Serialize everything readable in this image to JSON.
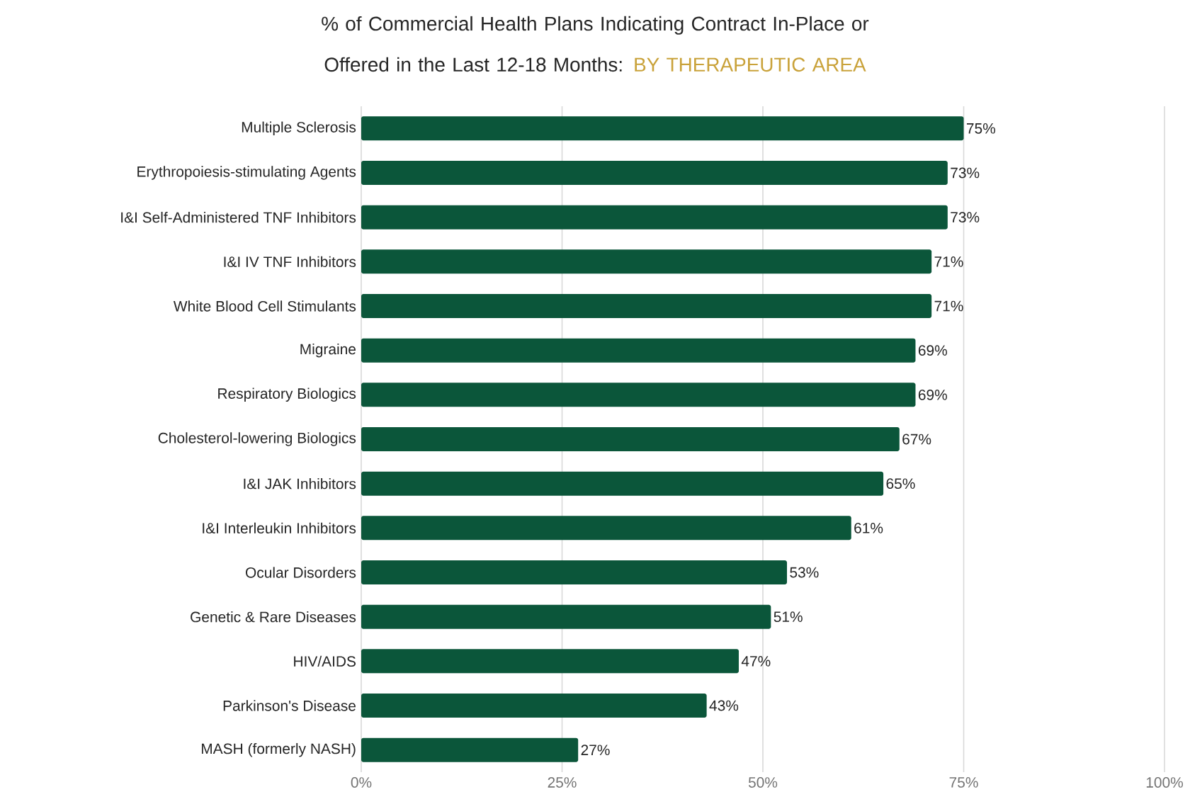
{
  "chart_data": {
    "type": "bar",
    "orientation": "horizontal",
    "title": "% of Commercial Health Plans Indicating Contract In-Place or Offered in the Last 12-18 Months:",
    "subtitle": "BY THERAPEUTIC AREA",
    "categories": [
      "Multiple Sclerosis",
      "Erythropoiesis-stimulating Agents",
      "I&I Self-Administered TNF Inhibitors",
      "I&I IV TNF Inhibitors",
      "White Blood Cell Stimulants",
      "Migraine",
      "Respiratory Biologics",
      "Cholesterol-lowering Biologics",
      "I&I JAK Inhibitors",
      "I&I Interleukin Inhibitors",
      "Ocular Disorders",
      "Genetic & Rare Diseases",
      "HIV/AIDS",
      "Parkinson's Disease",
      "MASH (formerly NASH)"
    ],
    "values": [
      75,
      73,
      73,
      71,
      71,
      69,
      69,
      67,
      65,
      61,
      53,
      51,
      47,
      43,
      27
    ],
    "value_labels": [
      "75%",
      "73%",
      "73%",
      "71%",
      "71%",
      "69%",
      "69%",
      "67%",
      "65%",
      "61%",
      "53%",
      "51%",
      "47%",
      "43%",
      "27%"
    ],
    "color": "#0b563a",
    "xlim": [
      0,
      100
    ],
    "xticks": [
      {
        "value": 0,
        "label": "0%"
      },
      {
        "value": 25,
        "label": "25%"
      },
      {
        "value": 50,
        "label": "50%"
      },
      {
        "value": 75,
        "label": "75%"
      },
      {
        "value": 100,
        "label": "100%"
      }
    ],
    "grid": "x"
  }
}
